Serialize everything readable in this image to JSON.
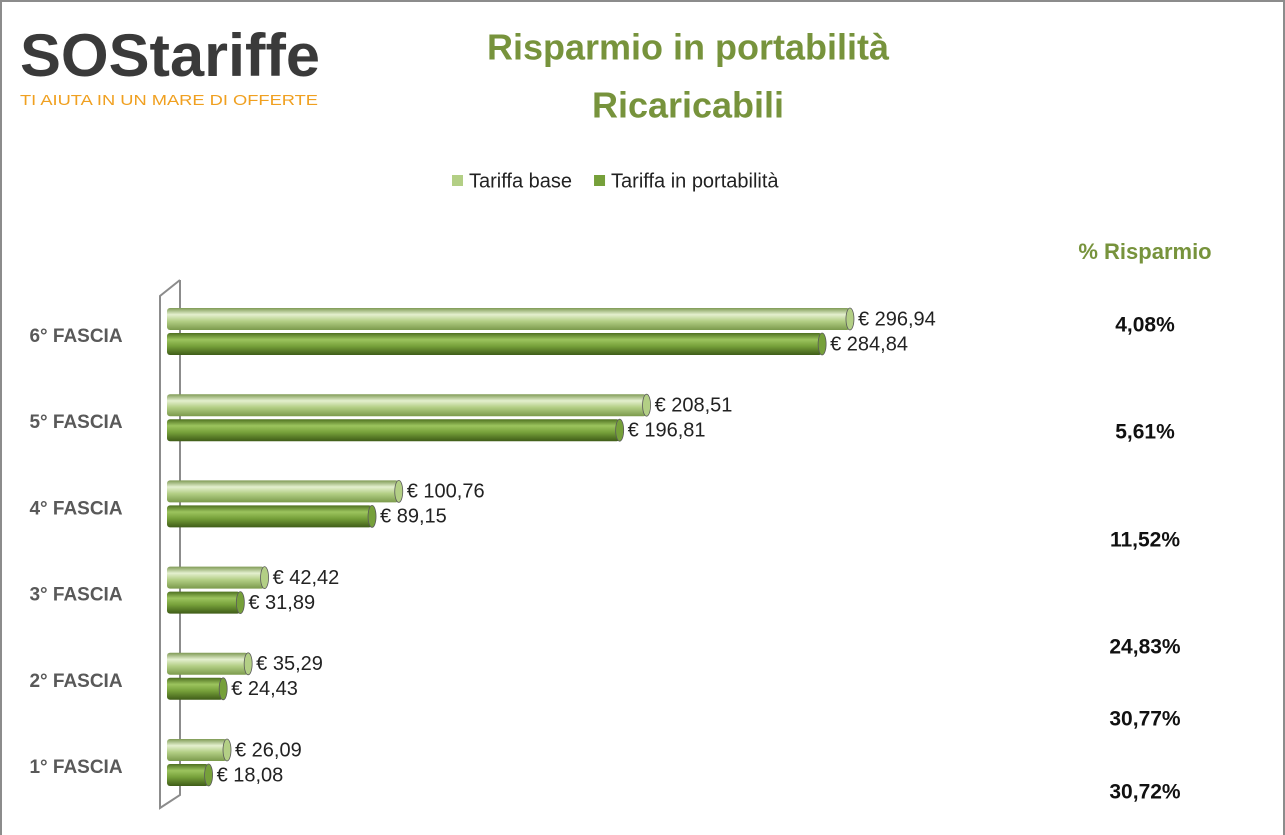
{
  "chart_data": {
    "type": "bar",
    "orientation": "horizontal",
    "brand": "SOStariffe",
    "tagline": "TI AIUTA IN UN MARE DI OFFERTE",
    "title": [
      "Risparmio in portabilità",
      "Ricaricabili"
    ],
    "categories": [
      "6° FASCIA",
      "5° FASCIA",
      "4° FASCIA",
      "3° FASCIA",
      "2° FASCIA",
      "1° FASCIA"
    ],
    "series": [
      {
        "name": "Tariffa base",
        "color": "#b3cf85",
        "values": [
          296.94,
          208.51,
          100.76,
          42.42,
          35.29,
          26.09
        ],
        "value_labels": [
          "€ 296,94",
          "€ 208,51",
          "€ 100,76",
          "€ 42,42",
          "€ 35,29",
          "€ 26,09"
        ]
      },
      {
        "name": "Tariffa in portabilità",
        "color": "#76a03a",
        "values": [
          284.84,
          196.81,
          89.15,
          31.89,
          24.43,
          18.08
        ],
        "value_labels": [
          "€ 284,84",
          "€ 196,81",
          "€ 89,15",
          "€ 31,89",
          "€ 24,43",
          "€ 18,08"
        ]
      }
    ],
    "xlim": [
      0,
      300
    ],
    "savings_title": "% Risparmio",
    "savings": [
      "4,08%",
      "5,61%",
      "11,52%",
      "24,83%",
      "30,77%",
      "30,72%"
    ]
  }
}
